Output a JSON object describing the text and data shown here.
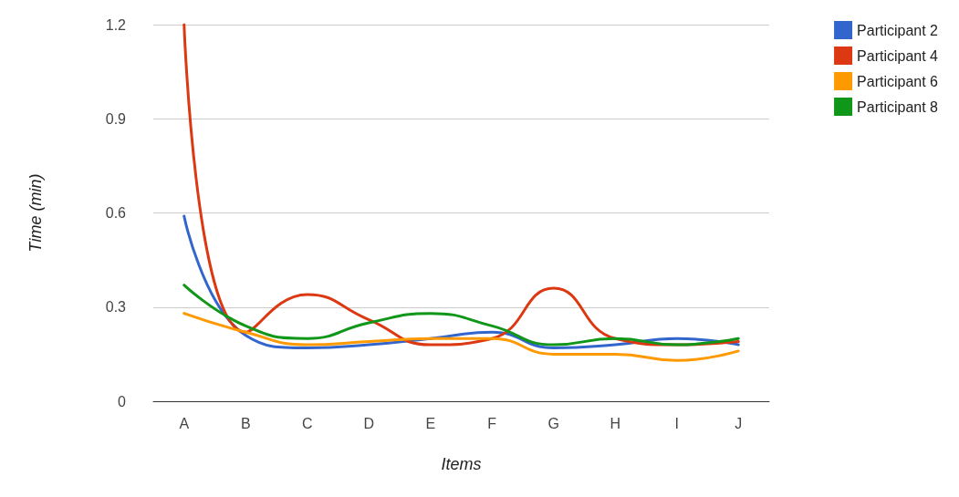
{
  "chart_data": {
    "type": "line",
    "xlabel": "Items",
    "ylabel": "Time (min)",
    "categories": [
      "A",
      "B",
      "C",
      "D",
      "E",
      "F",
      "G",
      "H",
      "I",
      "J"
    ],
    "series": [
      {
        "name": "Participant 2",
        "color": "#3366cc",
        "values": [
          0.59,
          0.21,
          0.17,
          0.18,
          0.2,
          0.22,
          0.17,
          0.18,
          0.2,
          0.18
        ]
      },
      {
        "name": "Participant 4",
        "color": "#dc3912",
        "values": [
          1.2,
          0.22,
          0.34,
          0.26,
          0.18,
          0.2,
          0.36,
          0.2,
          0.18,
          0.19
        ]
      },
      {
        "name": "Participant 6",
        "color": "#ff9900",
        "values": [
          0.28,
          0.22,
          0.18,
          0.19,
          0.2,
          0.2,
          0.15,
          0.15,
          0.13,
          0.16
        ]
      },
      {
        "name": "Participant 8",
        "color": "#109618",
        "values": [
          0.37,
          0.24,
          0.2,
          0.25,
          0.28,
          0.24,
          0.18,
          0.2,
          0.18,
          0.2
        ]
      }
    ],
    "ylim": [
      0,
      1.2
    ],
    "yticks": [
      0,
      0.3,
      0.6,
      0.9,
      1.2
    ],
    "grid": "y",
    "legend": "top right",
    "marker": "none"
  }
}
